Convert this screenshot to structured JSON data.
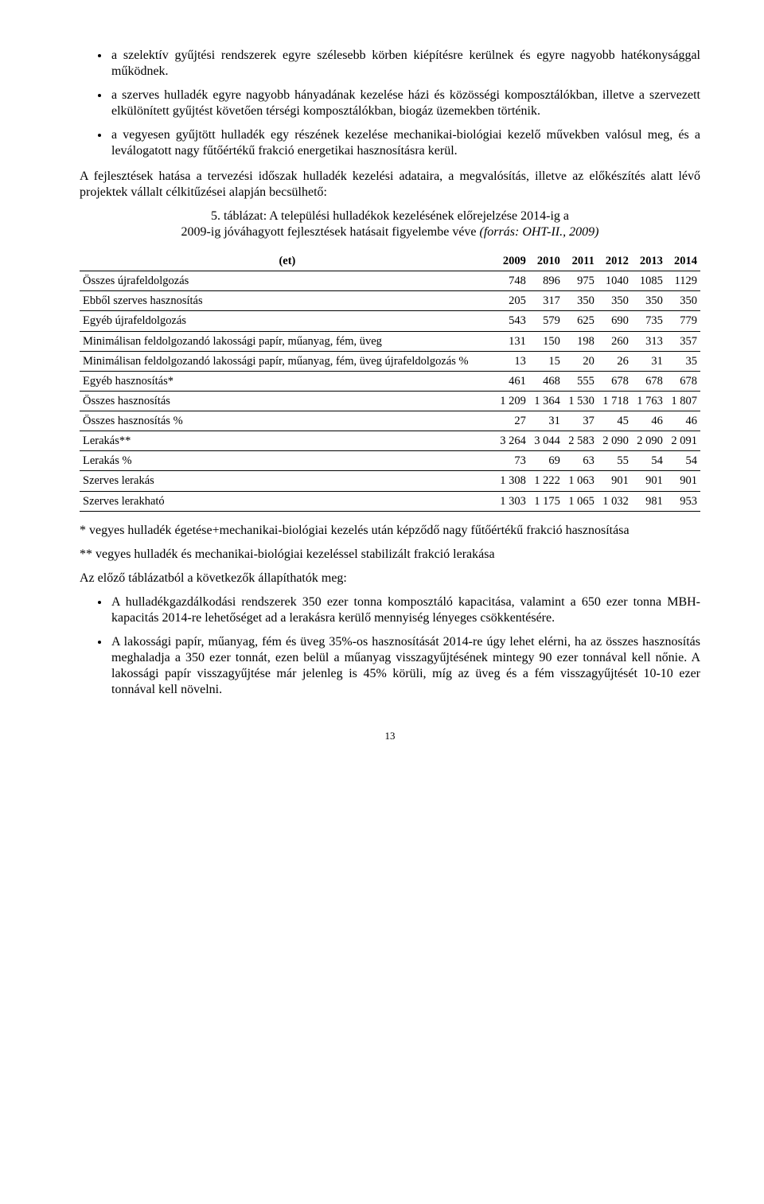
{
  "bullets_top": [
    "a szelektív gyűjtési rendszerek egyre szélesebb körben kiépítésre kerülnek és egyre nagyobb hatékonysággal működnek.",
    "a szerves hulladék egyre nagyobb hányadának kezelése házi és közösségi komposztálókban, illetve a szervezett elkülönített gyűjtést követően térségi komposztálókban, biogáz üzemekben történik.",
    "a vegyesen gyűjtött hulladék egy részének kezelése mechanikai-biológiai kezelő művekben valósul meg, és a leválogatott nagy fűtőértékű frakció energetikai hasznosításra kerül."
  ],
  "para1": "A fejlesztések hatása a tervezési időszak hulladék kezelési adataira, a megvalósítás, illetve az előkészítés alatt lévő projektek vállalt célkitűzései alapján becsülhető:",
  "caption_line1": "5. táblázat: A települési hulladékok kezelésének előrejelzése 2014-ig a",
  "caption_line2_plain": "2009-ig jóváhagyott fejlesztések hatásait figyelembe véve ",
  "caption_line2_italic": "(forrás: OHT-II., 2009)",
  "table": {
    "header_label": "(et)",
    "years": [
      "2009",
      "2010",
      "2011",
      "2012",
      "2013",
      "2014"
    ],
    "rows": [
      {
        "label": "Összes újrafeldolgozás",
        "vals": [
          "748",
          "896",
          "975",
          "1040",
          "1085",
          "1129"
        ]
      },
      {
        "label": "Ebből szerves hasznosítás",
        "vals": [
          "205",
          "317",
          "350",
          "350",
          "350",
          "350"
        ]
      },
      {
        "label": "Egyéb újrafeldolgozás",
        "vals": [
          "543",
          "579",
          "625",
          "690",
          "735",
          "779"
        ]
      },
      {
        "label": "Minimálisan feldolgozandó lakossági papír, műanyag, fém, üveg",
        "vals": [
          "131",
          "150",
          "198",
          "260",
          "313",
          "357"
        ]
      },
      {
        "label": "Minimálisan feldolgozandó lakossági papír, műanyag, fém, üveg újrafeldolgozás %",
        "vals": [
          "13",
          "15",
          "20",
          "26",
          "31",
          "35"
        ]
      },
      {
        "label": "Egyéb hasznosítás*",
        "vals": [
          "461",
          "468",
          "555",
          "678",
          "678",
          "678"
        ]
      },
      {
        "label": "Összes hasznosítás",
        "vals": [
          "1 209",
          "1 364",
          "1 530",
          "1 718",
          "1 763",
          "1 807"
        ]
      },
      {
        "label": "Összes hasznosítás %",
        "vals": [
          "27",
          "31",
          "37",
          "45",
          "46",
          "46"
        ]
      },
      {
        "label": "Lerakás**",
        "vals": [
          "3 264",
          "3 044",
          "2 583",
          "2 090",
          "2 090",
          "2 091"
        ]
      },
      {
        "label": "Lerakás %",
        "vals": [
          "73",
          "69",
          "63",
          "55",
          "54",
          "54"
        ]
      },
      {
        "label": "Szerves lerakás",
        "vals": [
          "1 308",
          "1 222",
          "1 063",
          "901",
          "901",
          "901"
        ]
      },
      {
        "label": "Szerves lerakható",
        "vals": [
          "1 303",
          "1 175",
          "1 065",
          "1 032",
          "981",
          "953"
        ]
      }
    ]
  },
  "footnote1": "* vegyes hulladék égetése+mechanikai-biológiai kezelés után képződő nagy fűtőértékű frakció hasznosítása",
  "footnote2": "** vegyes hulladék és mechanikai-biológiai kezeléssel stabilizált frakció lerakása",
  "para2": "Az előző táblázatból a következők állapíthatók meg:",
  "bullets_bottom": [
    "A hulladékgazdálkodási rendszerek 350 ezer tonna komposztáló kapacitása, valamint a 650 ezer tonna MBH-kapacitás 2014-re lehetőséget ad a lerakásra kerülő mennyiség lényeges csökkentésére.",
    "A lakossági papír, műanyag, fém és üveg 35%-os hasznosítását 2014-re úgy lehet elérni, ha az összes hasznosítás meghaladja a 350 ezer tonnát, ezen belül a műanyag visszagyűjtésének mintegy 90 ezer tonnával kell nőnie. A lakossági papír visszagyűjtése már jelenleg is 45% körüli, míg az üveg és a fém visszagyűjtését 10-10 ezer tonnával kell növelni."
  ],
  "page_number": "13"
}
